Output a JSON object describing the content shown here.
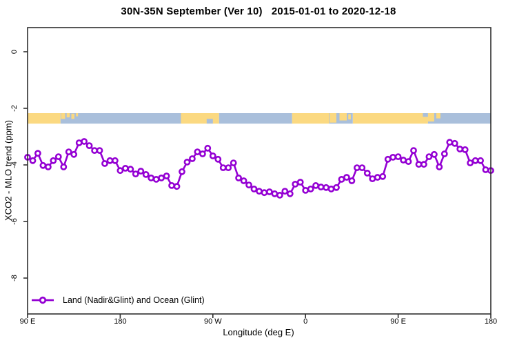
{
  "title": "30N-35N September (Ver 10)   2015-01-01 to 2020-12-18",
  "legend": {
    "label": "Land (Nadir&Glint) and Ocean (Glint)"
  },
  "colors": {
    "series": "#9400D3",
    "marker_fill": "#FFFFFF",
    "land": "#FBD981",
    "ocean": "#A9BFDB",
    "axis": "#2E2E2E",
    "text": "#000000",
    "background": "#FFFFFF"
  },
  "chart_data": {
    "type": "line",
    "title": "30N-35N September (Ver 10)   2015-01-01 to 2020-12-18",
    "xlabel": "Longitude (deg E)",
    "ylabel": "XCO2 - MLO trend (ppm)",
    "xlim": [
      90,
      540
    ],
    "ylim": [
      -9.3,
      0.9
    ],
    "grid": false,
    "legend_position": "bottom-left-inside",
    "x_axis_note": "longitude wraps: 90E east through 180, 90W, 0, 90E to 180",
    "x_ticks": [
      {
        "pos": 90,
        "label": "90 E"
      },
      {
        "pos": 180,
        "label": "180"
      },
      {
        "pos": 270,
        "label": "90 W"
      },
      {
        "pos": 360,
        "label": "0"
      },
      {
        "pos": 450,
        "label": "90 E"
      },
      {
        "pos": 540,
        "label": "180"
      }
    ],
    "y_ticks": [
      {
        "value": 0,
        "label": "0"
      },
      {
        "value": -2,
        "label": "-2"
      },
      {
        "value": -4,
        "label": "-4"
      },
      {
        "value": -6,
        "label": "-6"
      },
      {
        "value": -8,
        "label": "-8"
      }
    ],
    "land_ocean_band": {
      "y_top_value": -2.17,
      "y_bottom_value": -2.54,
      "segments": [
        {
          "from": 90,
          "to": 122,
          "surface": "land"
        },
        {
          "from": 122,
          "to": 239,
          "surface": "ocean"
        },
        {
          "from": 239,
          "to": 276,
          "surface": "land"
        },
        {
          "from": 276,
          "to": 347,
          "surface": "ocean"
        },
        {
          "from": 347,
          "to": 383,
          "surface": "land"
        },
        {
          "from": 383,
          "to": 406,
          "surface": "ocean"
        },
        {
          "from": 406,
          "to": 479,
          "surface": "land"
        },
        {
          "from": 479,
          "to": 540,
          "surface": "ocean"
        }
      ],
      "patches": [
        {
          "from": 122.5,
          "to": 126.5,
          "surface": "land",
          "top": 0,
          "h": 0.55
        },
        {
          "from": 128,
          "to": 131,
          "surface": "land",
          "top": 0,
          "h": 0.4
        },
        {
          "from": 132.5,
          "to": 135.5,
          "surface": "land",
          "top": 0.05,
          "h": 0.5
        },
        {
          "from": 137,
          "to": 139,
          "surface": "land",
          "top": 0,
          "h": 0.3
        },
        {
          "from": 264,
          "to": 270,
          "surface": "ocean",
          "top": 0.55,
          "h": 0.45
        },
        {
          "from": 383.5,
          "to": 390,
          "surface": "land",
          "top": 0,
          "h": 0.9
        },
        {
          "from": 393,
          "to": 400,
          "surface": "land",
          "top": 0,
          "h": 0.7
        },
        {
          "from": 401.5,
          "to": 404,
          "surface": "land",
          "top": 0.1,
          "h": 0.5
        },
        {
          "from": 474,
          "to": 479,
          "surface": "ocean",
          "top": 0,
          "h": 0.35
        },
        {
          "from": 479,
          "to": 485,
          "surface": "land",
          "top": 0,
          "h": 0.8
        },
        {
          "from": 487,
          "to": 491,
          "surface": "land",
          "top": 0,
          "h": 0.5
        }
      ]
    },
    "series": [
      {
        "name": "Land (Nadir&Glint) and Ocean (Glint)",
        "marker": "open-circle",
        "x": [
          90,
          95,
          100,
          105,
          110,
          115,
          120,
          125,
          130,
          135,
          140,
          145,
          150,
          155,
          160,
          165,
          170,
          175,
          180,
          185,
          190,
          195,
          200,
          205,
          210,
          215,
          220,
          225,
          230,
          235,
          240,
          245,
          250,
          255,
          260,
          265,
          270,
          275,
          280,
          285,
          290,
          295,
          300,
          305,
          310,
          315,
          320,
          325,
          330,
          335,
          340,
          345,
          350,
          355,
          360,
          365,
          370,
          375,
          380,
          385,
          390,
          395,
          400,
          405,
          410,
          415,
          420,
          425,
          430,
          435,
          440,
          445,
          450,
          455,
          460,
          465,
          470,
          475,
          480,
          485,
          490,
          495,
          500,
          505,
          510,
          515,
          520,
          525,
          530,
          535,
          540
        ],
        "y": [
          -3.73,
          -3.85,
          -3.59,
          -4.02,
          -4.07,
          -3.85,
          -3.71,
          -4.07,
          -3.54,
          -3.63,
          -3.22,
          -3.17,
          -3.32,
          -3.49,
          -3.49,
          -3.95,
          -3.85,
          -3.85,
          -4.2,
          -4.12,
          -4.15,
          -4.32,
          -4.22,
          -4.34,
          -4.46,
          -4.51,
          -4.46,
          -4.39,
          -4.73,
          -4.76,
          -4.24,
          -3.9,
          -3.78,
          -3.54,
          -3.61,
          -3.41,
          -3.68,
          -3.8,
          -4.1,
          -4.1,
          -3.93,
          -4.46,
          -4.56,
          -4.71,
          -4.85,
          -4.93,
          -4.98,
          -4.95,
          -5.02,
          -5.07,
          -4.93,
          -5.02,
          -4.68,
          -4.61,
          -4.9,
          -4.85,
          -4.73,
          -4.78,
          -4.8,
          -4.85,
          -4.8,
          -4.51,
          -4.44,
          -4.56,
          -4.1,
          -4.1,
          -4.29,
          -4.49,
          -4.44,
          -4.41,
          -3.8,
          -3.73,
          -3.71,
          -3.83,
          -3.88,
          -3.49,
          -3.98,
          -3.98,
          -3.71,
          -3.63,
          -4.07,
          -3.61,
          -3.2,
          -3.24,
          -3.44,
          -3.46,
          -3.93,
          -3.85,
          -3.85,
          -4.17,
          -4.2
        ]
      }
    ]
  }
}
